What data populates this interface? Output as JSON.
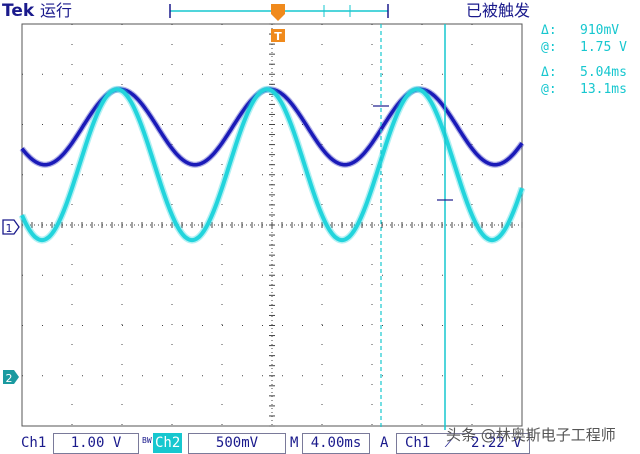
{
  "header": {
    "brand": "Tek",
    "run_state": "运行",
    "trigger_state": "已被触发"
  },
  "cursor_readouts": {
    "voltage_delta_label": "Δ:",
    "voltage_delta": "910mV",
    "voltage_at_label": "@:",
    "voltage_at": "1.75 V",
    "time_delta_label": "Δ:",
    "time_delta": "5.04ms",
    "time_at_label": "@:",
    "time_at": "13.1ms"
  },
  "markers": {
    "ch1": "1",
    "ch2": "2",
    "trigger": "T"
  },
  "status_bar": {
    "ch1_label": "Ch1",
    "ch1_scale": "1.00 V",
    "bw_mark": "BW",
    "ch2_label": "Ch2",
    "ch2_scale": "500mV",
    "mode_label": "M",
    "timebase": "4.00ms",
    "trigger_mode": "A",
    "trigger_source": "Ch1",
    "trigger_level": "2.22 V"
  },
  "watermark": "头条 @林奥斯电子工程师",
  "colors": {
    "ch1": "#1a1ab8",
    "ch2": "#22d4dc",
    "grid": "#3a3a3a",
    "accent": "#f08a1c"
  },
  "chart_data": {
    "type": "line",
    "x_unit": "ms",
    "x_per_division": 4.0,
    "divisions_x": 10,
    "divisions_y": 8,
    "series": [
      {
        "name": "Ch1",
        "period_divisions": 3.0,
        "amplitude_divisions": 0.75,
        "center_divisions": 1.95
      },
      {
        "name": "Ch2",
        "period_divisions": 3.0,
        "amplitude_divisions": 1.5,
        "center_divisions": 1.2
      }
    ]
  }
}
